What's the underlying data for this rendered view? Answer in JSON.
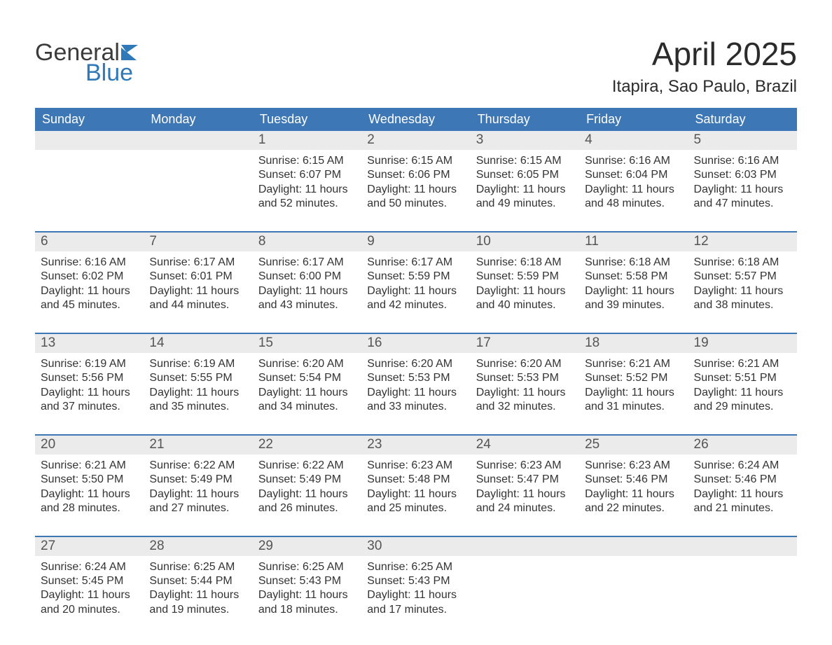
{
  "logo": {
    "text_general": "General",
    "text_blue": "Blue",
    "icon_fill": "#2f79b9"
  },
  "title": "April 2025",
  "subtitle": "Itapira, Sao Paulo, Brazil",
  "day_headers": [
    "Sunday",
    "Monday",
    "Tuesday",
    "Wednesday",
    "Thursday",
    "Friday",
    "Saturday"
  ],
  "colors": {
    "header_bg": "#3d77b5",
    "header_text": "#ffffff",
    "daynum_bg": "#ebebeb",
    "daynum_text": "#555555",
    "rule": "#3d77b5",
    "body_text": "#333333",
    "background": "#ffffff"
  },
  "weeks": [
    [
      {
        "day": "",
        "sunrise": "",
        "sunset": "",
        "dl1": "",
        "dl2": ""
      },
      {
        "day": "",
        "sunrise": "",
        "sunset": "",
        "dl1": "",
        "dl2": ""
      },
      {
        "day": "1",
        "sunrise": "Sunrise: 6:15 AM",
        "sunset": "Sunset: 6:07 PM",
        "dl1": "Daylight: 11 hours",
        "dl2": "and 52 minutes."
      },
      {
        "day": "2",
        "sunrise": "Sunrise: 6:15 AM",
        "sunset": "Sunset: 6:06 PM",
        "dl1": "Daylight: 11 hours",
        "dl2": "and 50 minutes."
      },
      {
        "day": "3",
        "sunrise": "Sunrise: 6:15 AM",
        "sunset": "Sunset: 6:05 PM",
        "dl1": "Daylight: 11 hours",
        "dl2": "and 49 minutes."
      },
      {
        "day": "4",
        "sunrise": "Sunrise: 6:16 AM",
        "sunset": "Sunset: 6:04 PM",
        "dl1": "Daylight: 11 hours",
        "dl2": "and 48 minutes."
      },
      {
        "day": "5",
        "sunrise": "Sunrise: 6:16 AM",
        "sunset": "Sunset: 6:03 PM",
        "dl1": "Daylight: 11 hours",
        "dl2": "and 47 minutes."
      }
    ],
    [
      {
        "day": "6",
        "sunrise": "Sunrise: 6:16 AM",
        "sunset": "Sunset: 6:02 PM",
        "dl1": "Daylight: 11 hours",
        "dl2": "and 45 minutes."
      },
      {
        "day": "7",
        "sunrise": "Sunrise: 6:17 AM",
        "sunset": "Sunset: 6:01 PM",
        "dl1": "Daylight: 11 hours",
        "dl2": "and 44 minutes."
      },
      {
        "day": "8",
        "sunrise": "Sunrise: 6:17 AM",
        "sunset": "Sunset: 6:00 PM",
        "dl1": "Daylight: 11 hours",
        "dl2": "and 43 minutes."
      },
      {
        "day": "9",
        "sunrise": "Sunrise: 6:17 AM",
        "sunset": "Sunset: 5:59 PM",
        "dl1": "Daylight: 11 hours",
        "dl2": "and 42 minutes."
      },
      {
        "day": "10",
        "sunrise": "Sunrise: 6:18 AM",
        "sunset": "Sunset: 5:59 PM",
        "dl1": "Daylight: 11 hours",
        "dl2": "and 40 minutes."
      },
      {
        "day": "11",
        "sunrise": "Sunrise: 6:18 AM",
        "sunset": "Sunset: 5:58 PM",
        "dl1": "Daylight: 11 hours",
        "dl2": "and 39 minutes."
      },
      {
        "day": "12",
        "sunrise": "Sunrise: 6:18 AM",
        "sunset": "Sunset: 5:57 PM",
        "dl1": "Daylight: 11 hours",
        "dl2": "and 38 minutes."
      }
    ],
    [
      {
        "day": "13",
        "sunrise": "Sunrise: 6:19 AM",
        "sunset": "Sunset: 5:56 PM",
        "dl1": "Daylight: 11 hours",
        "dl2": "and 37 minutes."
      },
      {
        "day": "14",
        "sunrise": "Sunrise: 6:19 AM",
        "sunset": "Sunset: 5:55 PM",
        "dl1": "Daylight: 11 hours",
        "dl2": "and 35 minutes."
      },
      {
        "day": "15",
        "sunrise": "Sunrise: 6:20 AM",
        "sunset": "Sunset: 5:54 PM",
        "dl1": "Daylight: 11 hours",
        "dl2": "and 34 minutes."
      },
      {
        "day": "16",
        "sunrise": "Sunrise: 6:20 AM",
        "sunset": "Sunset: 5:53 PM",
        "dl1": "Daylight: 11 hours",
        "dl2": "and 33 minutes."
      },
      {
        "day": "17",
        "sunrise": "Sunrise: 6:20 AM",
        "sunset": "Sunset: 5:53 PM",
        "dl1": "Daylight: 11 hours",
        "dl2": "and 32 minutes."
      },
      {
        "day": "18",
        "sunrise": "Sunrise: 6:21 AM",
        "sunset": "Sunset: 5:52 PM",
        "dl1": "Daylight: 11 hours",
        "dl2": "and 31 minutes."
      },
      {
        "day": "19",
        "sunrise": "Sunrise: 6:21 AM",
        "sunset": "Sunset: 5:51 PM",
        "dl1": "Daylight: 11 hours",
        "dl2": "and 29 minutes."
      }
    ],
    [
      {
        "day": "20",
        "sunrise": "Sunrise: 6:21 AM",
        "sunset": "Sunset: 5:50 PM",
        "dl1": "Daylight: 11 hours",
        "dl2": "and 28 minutes."
      },
      {
        "day": "21",
        "sunrise": "Sunrise: 6:22 AM",
        "sunset": "Sunset: 5:49 PM",
        "dl1": "Daylight: 11 hours",
        "dl2": "and 27 minutes."
      },
      {
        "day": "22",
        "sunrise": "Sunrise: 6:22 AM",
        "sunset": "Sunset: 5:49 PM",
        "dl1": "Daylight: 11 hours",
        "dl2": "and 26 minutes."
      },
      {
        "day": "23",
        "sunrise": "Sunrise: 6:23 AM",
        "sunset": "Sunset: 5:48 PM",
        "dl1": "Daylight: 11 hours",
        "dl2": "and 25 minutes."
      },
      {
        "day": "24",
        "sunrise": "Sunrise: 6:23 AM",
        "sunset": "Sunset: 5:47 PM",
        "dl1": "Daylight: 11 hours",
        "dl2": "and 24 minutes."
      },
      {
        "day": "25",
        "sunrise": "Sunrise: 6:23 AM",
        "sunset": "Sunset: 5:46 PM",
        "dl1": "Daylight: 11 hours",
        "dl2": "and 22 minutes."
      },
      {
        "day": "26",
        "sunrise": "Sunrise: 6:24 AM",
        "sunset": "Sunset: 5:46 PM",
        "dl1": "Daylight: 11 hours",
        "dl2": "and 21 minutes."
      }
    ],
    [
      {
        "day": "27",
        "sunrise": "Sunrise: 6:24 AM",
        "sunset": "Sunset: 5:45 PM",
        "dl1": "Daylight: 11 hours",
        "dl2": "and 20 minutes."
      },
      {
        "day": "28",
        "sunrise": "Sunrise: 6:25 AM",
        "sunset": "Sunset: 5:44 PM",
        "dl1": "Daylight: 11 hours",
        "dl2": "and 19 minutes."
      },
      {
        "day": "29",
        "sunrise": "Sunrise: 6:25 AM",
        "sunset": "Sunset: 5:43 PM",
        "dl1": "Daylight: 11 hours",
        "dl2": "and 18 minutes."
      },
      {
        "day": "30",
        "sunrise": "Sunrise: 6:25 AM",
        "sunset": "Sunset: 5:43 PM",
        "dl1": "Daylight: 11 hours",
        "dl2": "and 17 minutes."
      },
      {
        "day": "",
        "sunrise": "",
        "sunset": "",
        "dl1": "",
        "dl2": ""
      },
      {
        "day": "",
        "sunrise": "",
        "sunset": "",
        "dl1": "",
        "dl2": ""
      },
      {
        "day": "",
        "sunrise": "",
        "sunset": "",
        "dl1": "",
        "dl2": ""
      }
    ]
  ]
}
